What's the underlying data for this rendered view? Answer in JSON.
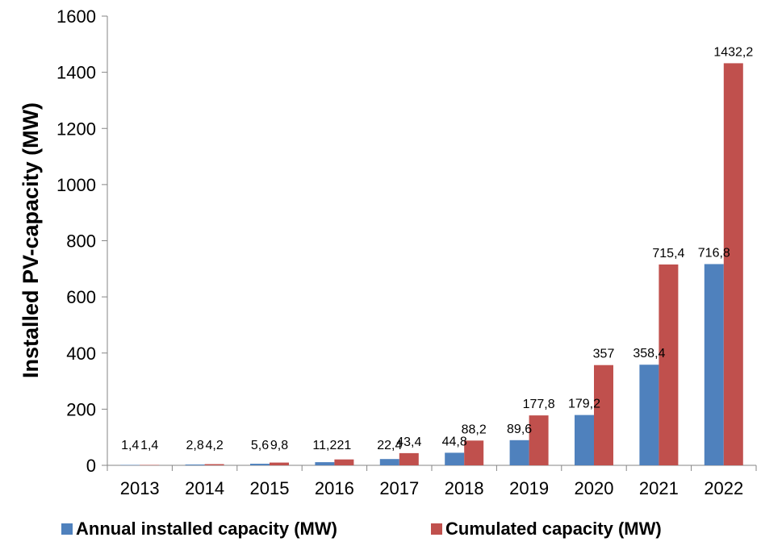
{
  "chart_data": {
    "type": "bar",
    "title": "",
    "xlabel": "",
    "ylabel": "Installed PV-capacity (MW)",
    "ylim": [
      0,
      1600
    ],
    "yticks": [
      "0",
      "200",
      "400",
      "600",
      "800",
      "1000",
      "1200",
      "1400",
      "1600"
    ],
    "categories": [
      "2013",
      "2014",
      "2015",
      "2016",
      "2017",
      "2018",
      "2019",
      "2020",
      "2021",
      "2022"
    ],
    "grid": false,
    "legend_position": "bottom",
    "series": [
      {
        "name": "Annual installed capacity (MW)",
        "color": "#4F81BD",
        "values": [
          1.4,
          2.8,
          5.6,
          11.2,
          22.4,
          44.8,
          89.6,
          179.2,
          358.4,
          716.8
        ],
        "labels": [
          "1,4",
          "2,8",
          "5,6",
          "11,2",
          "22,4",
          "44,8",
          "89,6",
          "179,2",
          "358,4",
          "716,8"
        ]
      },
      {
        "name": "Cumulated capacity (MW)",
        "color": "#C0504D",
        "values": [
          1.4,
          4.2,
          9.8,
          21,
          43.4,
          88.2,
          177.8,
          357,
          715.4,
          1432.2
        ],
        "labels": [
          "1,4",
          "4,2",
          "9,8",
          "21",
          "43,4",
          "88,2",
          "177,8",
          "357",
          "715,4",
          "1432,2"
        ]
      }
    ]
  }
}
